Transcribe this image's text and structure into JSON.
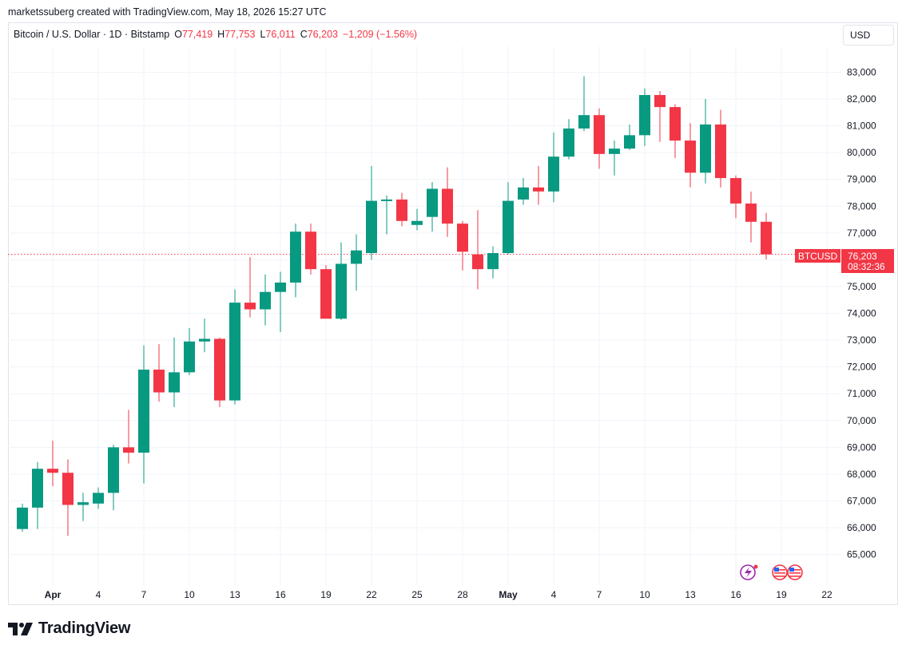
{
  "attribution": "marketssuberg created with TradingView.com, May 18, 2026 15:27 UTC",
  "legend": {
    "symbol": "Bitcoin / U.S. Dollar · 1D · Bitstamp",
    "o_label": "O",
    "o_value": "77,419",
    "h_label": "H",
    "h_value": "77,753",
    "l_label": "L",
    "l_value": "76,011",
    "c_label": "C",
    "c_value": "76,203",
    "change": "−1,209 (−1.56%)"
  },
  "currency_button": "USD",
  "price_tag": {
    "symbol": "BTCUSD",
    "price": "76,203",
    "countdown": "08:32:36"
  },
  "brand": "TradingView",
  "colors": {
    "up": "#089981",
    "down": "#f23645",
    "grid": "#f0f3fa",
    "text": "#131722"
  },
  "icons": [
    "tradingview-logo-icon",
    "economic-event-icon",
    "us-flag-icon"
  ],
  "chart_data": {
    "type": "candlestick",
    "symbol": "BTCUSD",
    "ylim": [
      64000,
      83500
    ],
    "y_ticks": [
      65000,
      66000,
      67000,
      68000,
      69000,
      70000,
      71000,
      72000,
      73000,
      74000,
      75000,
      76000,
      77000,
      78000,
      79000,
      80000,
      81000,
      82000,
      83000
    ],
    "x_ticks": [
      {
        "label": "Apr",
        "day": 1
      },
      {
        "label": "4",
        "day": 4
      },
      {
        "label": "7",
        "day": 7
      },
      {
        "label": "10",
        "day": 10
      },
      {
        "label": "13",
        "day": 13
      },
      {
        "label": "16",
        "day": 16
      },
      {
        "label": "19",
        "day": 19
      },
      {
        "label": "22",
        "day": 22
      },
      {
        "label": "25",
        "day": 25
      },
      {
        "label": "28",
        "day": 28
      },
      {
        "label": "May",
        "day": 31
      },
      {
        "label": "4",
        "day": 34
      },
      {
        "label": "7",
        "day": 37
      },
      {
        "label": "10",
        "day": 40
      },
      {
        "label": "13",
        "day": 43
      },
      {
        "label": "16",
        "day": 46
      },
      {
        "label": "19",
        "day": 49
      },
      {
        "label": "22",
        "day": 52
      }
    ],
    "last_price": 76203,
    "candles": [
      {
        "day": -1,
        "o": 65950,
        "h": 66900,
        "l": 65850,
        "c": 66750
      },
      {
        "day": 0,
        "o": 66750,
        "h": 68450,
        "l": 65950,
        "c": 68200
      },
      {
        "day": 1,
        "o": 68200,
        "h": 69250,
        "l": 67550,
        "c": 68050
      },
      {
        "day": 2,
        "o": 68050,
        "h": 68550,
        "l": 65700,
        "c": 66850
      },
      {
        "day": 3,
        "o": 66850,
        "h": 67300,
        "l": 66250,
        "c": 66950
      },
      {
        "day": 4,
        "o": 66900,
        "h": 67500,
        "l": 66700,
        "c": 67300
      },
      {
        "day": 5,
        "o": 67300,
        "h": 69100,
        "l": 66650,
        "c": 69000
      },
      {
        "day": 6,
        "o": 69000,
        "h": 70400,
        "l": 68400,
        "c": 68800
      },
      {
        "day": 7,
        "o": 68800,
        "h": 72800,
        "l": 67650,
        "c": 71900
      },
      {
        "day": 8,
        "o": 71900,
        "h": 72850,
        "l": 70700,
        "c": 71050
      },
      {
        "day": 9,
        "o": 71050,
        "h": 73100,
        "l": 70500,
        "c": 71800
      },
      {
        "day": 10,
        "o": 71800,
        "h": 73450,
        "l": 71700,
        "c": 72950
      },
      {
        "day": 11,
        "o": 72950,
        "h": 73800,
        "l": 72550,
        "c": 73050
      },
      {
        "day": 12,
        "o": 73050,
        "h": 73100,
        "l": 70500,
        "c": 70750
      },
      {
        "day": 13,
        "o": 70750,
        "h": 74900,
        "l": 70600,
        "c": 74400
      },
      {
        "day": 14,
        "o": 74400,
        "h": 76100,
        "l": 73850,
        "c": 74150
      },
      {
        "day": 15,
        "o": 74150,
        "h": 75450,
        "l": 73550,
        "c": 74800
      },
      {
        "day": 16,
        "o": 74800,
        "h": 75550,
        "l": 73300,
        "c": 75150
      },
      {
        "day": 17,
        "o": 75150,
        "h": 77350,
        "l": 74600,
        "c": 77050
      },
      {
        "day": 18,
        "o": 77050,
        "h": 77350,
        "l": 75450,
        "c": 75650
      },
      {
        "day": 19,
        "o": 75650,
        "h": 75800,
        "l": 73800,
        "c": 73800
      },
      {
        "day": 20,
        "o": 73800,
        "h": 76650,
        "l": 73750,
        "c": 75850
      },
      {
        "day": 21,
        "o": 75850,
        "h": 76950,
        "l": 74850,
        "c": 76350
      },
      {
        "day": 22,
        "o": 76250,
        "h": 79500,
        "l": 76000,
        "c": 78200
      },
      {
        "day": 23,
        "o": 78200,
        "h": 78400,
        "l": 76950,
        "c": 78250
      },
      {
        "day": 24,
        "o": 78250,
        "h": 78500,
        "l": 77250,
        "c": 77450
      },
      {
        "day": 25,
        "o": 77300,
        "h": 77900,
        "l": 77100,
        "c": 77450
      },
      {
        "day": 26,
        "o": 77600,
        "h": 78900,
        "l": 77050,
        "c": 78650
      },
      {
        "day": 27,
        "o": 78650,
        "h": 79450,
        "l": 76850,
        "c": 77350
      },
      {
        "day": 28,
        "o": 77350,
        "h": 77450,
        "l": 75600,
        "c": 76300
      },
      {
        "day": 29,
        "o": 76200,
        "h": 77850,
        "l": 74900,
        "c": 75650
      },
      {
        "day": 30,
        "o": 75650,
        "h": 76500,
        "l": 75300,
        "c": 76250
      },
      {
        "day": 31,
        "o": 76250,
        "h": 78900,
        "l": 76200,
        "c": 78200
      },
      {
        "day": 32,
        "o": 78250,
        "h": 79050,
        "l": 78050,
        "c": 78700
      },
      {
        "day": 33,
        "o": 78700,
        "h": 79500,
        "l": 78050,
        "c": 78550
      },
      {
        "day": 34,
        "o": 78550,
        "h": 80750,
        "l": 78150,
        "c": 79850
      },
      {
        "day": 35,
        "o": 79850,
        "h": 81250,
        "l": 79750,
        "c": 80900
      },
      {
        "day": 36,
        "o": 80900,
        "h": 82850,
        "l": 80800,
        "c": 81400
      },
      {
        "day": 37,
        "o": 81400,
        "h": 81650,
        "l": 79400,
        "c": 79950
      },
      {
        "day": 38,
        "o": 79950,
        "h": 80450,
        "l": 79150,
        "c": 80150
      },
      {
        "day": 39,
        "o": 80150,
        "h": 81050,
        "l": 80100,
        "c": 80650
      },
      {
        "day": 40,
        "o": 80650,
        "h": 82400,
        "l": 80250,
        "c": 82150
      },
      {
        "day": 41,
        "o": 82150,
        "h": 82300,
        "l": 80400,
        "c": 81700
      },
      {
        "day": 42,
        "o": 81700,
        "h": 81800,
        "l": 79800,
        "c": 80450
      },
      {
        "day": 43,
        "o": 80450,
        "h": 81100,
        "l": 78700,
        "c": 79250
      },
      {
        "day": 44,
        "o": 79250,
        "h": 82000,
        "l": 78850,
        "c": 81050
      },
      {
        "day": 45,
        "o": 81050,
        "h": 81600,
        "l": 78700,
        "c": 79050
      },
      {
        "day": 46,
        "o": 79050,
        "h": 79150,
        "l": 77550,
        "c": 78100
      },
      {
        "day": 47,
        "o": 78100,
        "h": 78550,
        "l": 76650,
        "c": 77419
      },
      {
        "day": 48,
        "o": 77419,
        "h": 77753,
        "l": 76011,
        "c": 76203
      }
    ]
  }
}
